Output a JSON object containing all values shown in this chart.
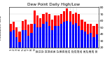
{
  "title": "Dew Point Daily High/Low",
  "ylabel_right": "",
  "label_left": "Milwaukee, dew",
  "background_color": "#ffffff",
  "grid_color": "#cccccc",
  "categories": [
    "1",
    "2",
    "3",
    "4",
    "5",
    "6",
    "7",
    "8",
    "9",
    "10",
    "11",
    "12",
    "13",
    "14",
    "15",
    "16",
    "17",
    "18",
    "19",
    "20",
    "21",
    "22",
    "23",
    "24",
    "25",
    "26",
    "27",
    "28",
    "29",
    "30"
  ],
  "highs": [
    55,
    58,
    50,
    44,
    60,
    62,
    54,
    55,
    75,
    68,
    64,
    70,
    72,
    70,
    62,
    68,
    68,
    70,
    74,
    78,
    74,
    70,
    72,
    70,
    62,
    58,
    55,
    55,
    52,
    55
  ],
  "lows": [
    44,
    46,
    36,
    28,
    46,
    46,
    38,
    42,
    55,
    50,
    50,
    55,
    58,
    52,
    46,
    52,
    52,
    55,
    58,
    60,
    58,
    54,
    56,
    52,
    46,
    44,
    40,
    42,
    36,
    40
  ],
  "high_color": "#ff0000",
  "low_color": "#0000ff",
  "ylim": [
    20,
    80
  ],
  "yticks": [
    20,
    30,
    40,
    50,
    60,
    70,
    80
  ],
  "title_fontsize": 4.2,
  "tick_fontsize": 3.2,
  "label_fontsize": 3.2,
  "dotted_lines": [
    19,
    20,
    21,
    22
  ]
}
